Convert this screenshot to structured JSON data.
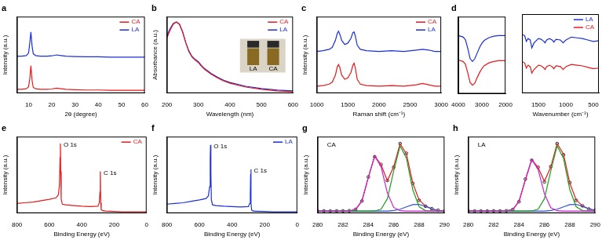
{
  "chart_data": [
    {
      "type": "line",
      "title": "a",
      "x_label": "2θ (degree)",
      "y_label": "Intensity (a.u.)",
      "x": [
        5,
        7,
        9,
        10,
        10.5,
        11,
        11.5,
        12,
        13,
        15,
        18,
        20,
        22,
        24,
        26,
        30,
        35,
        40,
        45,
        50,
        55,
        60
      ],
      "series": [
        {
          "name": "CA",
          "color": "#e41a1c",
          "line_style": "solid",
          "values": [
            0.6,
            0.6,
            0.7,
            1.0,
            2.2,
            4.3,
            2.0,
            0.9,
            0.7,
            0.6,
            0.6,
            0.65,
            0.8,
            0.7,
            0.6,
            0.55,
            0.5,
            0.5,
            0.45,
            0.45,
            0.45,
            0.45
          ]
        },
        {
          "name": "LA",
          "color": "#1a2fd6",
          "line_style": "solid",
          "values": [
            5.8,
            5.8,
            5.9,
            6.3,
            7.8,
            9.6,
            7.4,
            6.2,
            5.9,
            5.8,
            5.8,
            5.85,
            6.0,
            5.9,
            5.8,
            5.75,
            5.7,
            5.7,
            5.65,
            5.65,
            5.65,
            5.65
          ]
        }
      ],
      "xlim": [
        5,
        60
      ],
      "xticks": [
        10,
        20,
        30,
        40,
        50,
        60
      ],
      "ylim": [
        0,
        12
      ],
      "grid": false,
      "tick_labels": "x",
      "legend": "upper right"
    },
    {
      "type": "line",
      "title": "b",
      "x_label": "Wavelength (nm)",
      "y_label": "Absorbance (a.u.)",
      "x": [
        200,
        210,
        220,
        230,
        240,
        250,
        260,
        270,
        280,
        290,
        300,
        310,
        320,
        340,
        360,
        380,
        400,
        450,
        500,
        550,
        600
      ],
      "series": [
        {
          "name": "CA",
          "color": "#e41a1c",
          "line_style": "solid",
          "values": [
            0.72,
            0.82,
            0.9,
            0.93,
            0.9,
            0.8,
            0.66,
            0.54,
            0.47,
            0.43,
            0.4,
            0.35,
            0.31,
            0.25,
            0.2,
            0.16,
            0.13,
            0.08,
            0.05,
            0.03,
            0.02
          ]
        },
        {
          "name": "LA",
          "color": "#1a2fd6",
          "line_style": "solid",
          "values": [
            0.75,
            0.84,
            0.91,
            0.93,
            0.9,
            0.8,
            0.66,
            0.55,
            0.48,
            0.44,
            0.41,
            0.36,
            0.32,
            0.26,
            0.21,
            0.17,
            0.14,
            0.09,
            0.06,
            0.04,
            0.03
          ]
        }
      ],
      "xlim": [
        200,
        600
      ],
      "xticks": [
        200,
        300,
        400,
        500,
        600
      ],
      "ylim": [
        0,
        1
      ],
      "grid": false,
      "tick_labels": "x",
      "legend": "upper right",
      "annotations": [
        {
          "text": "LA"
        },
        {
          "text": "CA"
        }
      ]
    },
    {
      "type": "line",
      "title": "c",
      "x_label": "Raman shift (cm⁻¹)",
      "y_label": "Intensity (a.u.)",
      "x": [
        1000,
        1100,
        1200,
        1250,
        1300,
        1330,
        1350,
        1370,
        1400,
        1450,
        1500,
        1550,
        1580,
        1600,
        1620,
        1650,
        1700,
        1800,
        2000,
        2200,
        2400,
        2600,
        2700,
        2800,
        2900,
        3000
      ],
      "series": [
        {
          "name": "CA",
          "color": "#e41a1c",
          "line_style": "solid",
          "values": [
            1.0,
            1.1,
            1.3,
            1.6,
            2.6,
            3.8,
            4.1,
            3.7,
            2.6,
            2.0,
            2.2,
            3.0,
            4.0,
            4.3,
            3.6,
            2.0,
            1.3,
            1.1,
            1.0,
            1.1,
            1.0,
            1.2,
            1.4,
            1.2,
            1.0,
            1.0
          ]
        },
        {
          "name": "LA",
          "color": "#1a2fd6",
          "line_style": "solid",
          "values": [
            6.0,
            6.1,
            6.3,
            6.6,
            7.6,
            8.6,
            8.9,
            8.5,
            7.6,
            7.0,
            7.2,
            7.9,
            8.7,
            8.8,
            8.2,
            6.9,
            6.3,
            6.1,
            6.0,
            6.1,
            6.0,
            6.2,
            6.3,
            6.2,
            6.0,
            6.0
          ]
        }
      ],
      "xlim": [
        1000,
        3000
      ],
      "xticks": [
        1000,
        1500,
        2000,
        2500,
        3000
      ],
      "ylim": [
        0,
        11
      ],
      "grid": false,
      "tick_labels": "x",
      "legend": "upper right"
    },
    {
      "type": "line",
      "title": "d",
      "x": [
        4000,
        3800,
        3700,
        3600,
        3500,
        3400,
        3300,
        3200,
        3100,
        3000,
        2900,
        2700,
        2500,
        2300,
        2000
      ],
      "series": [
        {
          "color": "#1a2fd6",
          "line_style": "solid",
          "values": [
            8.3,
            8.1,
            7.7,
            6.5,
            5.0,
            4.6,
            5.0,
            5.8,
            6.6,
            7.2,
            7.6,
            8.0,
            8.2,
            8.3,
            8.3
          ]
        },
        {
          "color": "#e41a1c",
          "line_style": "solid",
          "values": [
            4.8,
            4.6,
            4.2,
            3.0,
            1.6,
            1.2,
            1.5,
            2.3,
            3.0,
            3.6,
            4.0,
            4.4,
            4.6,
            4.7,
            4.7
          ]
        }
      ],
      "xlim": [
        4000,
        2000
      ],
      "xticks": [
        4000,
        3000,
        2000
      ],
      "ylim": [
        0,
        11
      ],
      "grid": false,
      "tick_labels": "x"
    },
    {
      "type": "line",
      "x_label": "Wavenumber (cm⁻¹)",
      "x": [
        1800,
        1750,
        1720,
        1690,
        1650,
        1620,
        1580,
        1500,
        1450,
        1400,
        1380,
        1350,
        1300,
        1250,
        1220,
        1180,
        1100,
        1050,
        1000,
        900,
        800,
        700,
        600,
        500,
        400
      ],
      "series": [
        {
          "name": "LA",
          "color": "#1a2fd6",
          "line_style": "solid",
          "values": [
            8.2,
            8.0,
            7.2,
            7.6,
            7.4,
            6.3,
            7.0,
            7.6,
            7.5,
            7.2,
            7.0,
            7.4,
            7.6,
            7.4,
            7.1,
            7.5,
            7.4,
            7.0,
            7.4,
            7.8,
            7.7,
            7.6,
            7.4,
            7.2,
            7.3
          ]
        },
        {
          "name": "CA",
          "color": "#e41a1c",
          "line_style": "solid",
          "values": [
            4.4,
            4.2,
            3.5,
            3.9,
            3.7,
            2.8,
            3.3,
            3.9,
            3.8,
            3.5,
            3.3,
            3.7,
            3.9,
            3.7,
            3.4,
            3.8,
            3.7,
            3.3,
            3.7,
            4.0,
            3.9,
            3.8,
            3.6,
            3.4,
            3.5
          ]
        }
      ],
      "xlim": [
        1800,
        400
      ],
      "xticks": [
        1500,
        1000,
        500
      ],
      "ylim": [
        0,
        11
      ],
      "grid": false,
      "tick_labels": "x",
      "legend": "upper right"
    },
    {
      "type": "line",
      "title": "e",
      "x_label": "Binding Energy (eV)",
      "y_label": "Intensity (a.u.)",
      "x": [
        800,
        750,
        700,
        650,
        600,
        560,
        545,
        538,
        534,
        532,
        530,
        527,
        520,
        500,
        450,
        400,
        350,
        300,
        292,
        288,
        286,
        285,
        283,
        280,
        270,
        250,
        200,
        150,
        100,
        50,
        0
      ],
      "series": [
        {
          "name": "CA",
          "color": "#e41a1c",
          "line_style": "solid",
          "values": [
            1.4,
            1.5,
            1.6,
            1.8,
            2.0,
            2.2,
            2.6,
            4.0,
            8.0,
            10.0,
            6.0,
            2.0,
            1.3,
            1.2,
            1.1,
            1.0,
            0.95,
            1.0,
            1.5,
            3.0,
            5.5,
            6.0,
            1.5,
            0.5,
            0.35,
            0.3,
            0.25,
            0.2,
            0.2,
            0.2,
            0.2
          ]
        }
      ],
      "xlim": [
        800,
        0
      ],
      "xticks": [
        800,
        600,
        400,
        200,
        0
      ],
      "ylim": [
        0,
        11
      ],
      "grid": false,
      "tick_labels": "x",
      "legend": "upper right",
      "annotations": [
        {
          "text": "O 1s",
          "x": 532,
          "y": 10.0
        },
        {
          "text": "C 1s",
          "x": 285,
          "y": 6.0
        }
      ]
    },
    {
      "type": "line",
      "title": "f",
      "x_label": "Binding Energy (eV)",
      "y_label": "Intensity (a.u.)",
      "x": [
        800,
        750,
        700,
        650,
        600,
        560,
        545,
        538,
        534,
        532,
        530,
        527,
        520,
        500,
        450,
        400,
        350,
        300,
        292,
        288,
        286,
        285,
        283,
        280,
        270,
        250,
        200,
        150,
        100,
        50,
        0
      ],
      "series": [
        {
          "name": "LA",
          "color": "#1a2fd6",
          "line_style": "solid",
          "values": [
            1.3,
            1.4,
            1.5,
            1.7,
            1.9,
            2.1,
            2.5,
            3.8,
            7.8,
            9.8,
            5.8,
            1.9,
            1.2,
            1.1,
            1.0,
            0.95,
            0.9,
            0.95,
            1.4,
            2.8,
            5.6,
            6.3,
            1.4,
            0.45,
            0.3,
            0.28,
            0.24,
            0.2,
            0.2,
            0.2,
            0.2
          ]
        }
      ],
      "xlim": [
        800,
        0
      ],
      "xticks": [
        800,
        600,
        400,
        200,
        0
      ],
      "ylim": [
        0,
        11
      ],
      "grid": false,
      "tick_labels": "x",
      "legend": "upper right",
      "annotations": [
        {
          "text": "O 1s",
          "x": 532,
          "y": 9.8
        },
        {
          "text": "C 1s",
          "x": 285,
          "y": 6.3
        }
      ]
    },
    {
      "type": "line",
      "title": "g",
      "x_label": "Binding Energy (eV)",
      "y_label": "Intensity (a.u.)",
      "x": [
        280,
        280.5,
        281,
        281.5,
        282,
        282.5,
        283,
        283.5,
        284,
        284.5,
        285,
        285.5,
        286,
        286.5,
        287,
        287.5,
        288,
        288.5,
        289,
        289.5,
        290
      ],
      "series": [
        {
          "color": "#cc22cc",
          "line_style": "solid",
          "values": [
            0.3,
            0.3,
            0.3,
            0.3,
            0.3,
            0.32,
            0.53,
            1.79,
            5.15,
            8.2,
            6.7,
            2.9,
            0.83,
            0.35,
            0.3,
            0.3,
            0.3,
            0.3,
            0.3,
            0.3,
            0.3
          ]
        },
        {
          "color": "#1e9e1e",
          "line_style": "solid",
          "values": [
            0.3,
            0.3,
            0.3,
            0.3,
            0.3,
            0.3,
            0.3,
            0.3,
            0.3,
            0.32,
            0.57,
            2.07,
            6.07,
            9.67,
            7.9,
            3.39,
            0.93,
            0.36,
            0.3,
            0.3,
            0.3
          ]
        },
        {
          "color": "#3050d0",
          "line_style": "solid",
          "values": [
            0.3,
            0.3,
            0.3,
            0.3,
            0.3,
            0.3,
            0.3,
            0.3,
            0.3,
            0.3,
            0.3,
            0.3,
            0.38,
            0.57,
            0.91,
            1.23,
            1.27,
            0.98,
            0.62,
            0.4,
            0.32
          ]
        },
        {
          "color": "#e41a1c",
          "line_style": "solid",
          "values": [
            0.3,
            0.3,
            0.3,
            0.3,
            0.3,
            0.32,
            0.53,
            1.79,
            5.15,
            8.22,
            6.97,
            4.67,
            6.68,
            9.99,
            8.51,
            4.32,
            1.9,
            1.04,
            0.62,
            0.4,
            0.32
          ]
        },
        {
          "color": "#000000",
          "marker": "circle",
          "line_style": "none",
          "values": [
            0.3,
            0.32,
            0.3,
            0.31,
            0.33,
            0.35,
            0.55,
            1.75,
            5.2,
            8.1,
            7.0,
            4.7,
            6.6,
            10.0,
            8.6,
            4.3,
            1.85,
            1.0,
            0.65,
            0.42,
            0.3
          ]
        }
      ],
      "xlim": [
        280,
        290
      ],
      "xticks": [
        280,
        282,
        284,
        286,
        288,
        290
      ],
      "ylim": [
        0,
        11
      ],
      "grid": false,
      "tick_labels": "x",
      "annotations": [
        {
          "text": "CA",
          "x": 280.5,
          "y": 10
        }
      ]
    },
    {
      "type": "line",
      "title": "h",
      "x_label": "Binding Energy (eV)",
      "y_label": "Intensity (a.u.)",
      "x": [
        280,
        280.5,
        281,
        281.5,
        282,
        282.5,
        283,
        283.5,
        284,
        284.5,
        285,
        285.5,
        286,
        286.5,
        287,
        287.5,
        288,
        288.5,
        289,
        289.5,
        290
      ],
      "series": [
        {
          "color": "#cc22cc",
          "line_style": "solid",
          "values": [
            0.3,
            0.3,
            0.3,
            0.3,
            0.3,
            0.3,
            0.32,
            0.5,
            1.7,
            4.8,
            7.7,
            6.3,
            2.8,
            0.8,
            0.35,
            0.3,
            0.3,
            0.3,
            0.3,
            0.3,
            0.3
          ]
        },
        {
          "color": "#1e9e1e",
          "line_style": "solid",
          "values": [
            0.3,
            0.3,
            0.3,
            0.3,
            0.3,
            0.3,
            0.3,
            0.3,
            0.3,
            0.3,
            0.32,
            0.57,
            2.07,
            6.07,
            9.67,
            7.9,
            3.39,
            0.93,
            0.36,
            0.3,
            0.3
          ]
        },
        {
          "color": "#3050d0",
          "line_style": "solid",
          "values": [
            0.3,
            0.3,
            0.3,
            0.3,
            0.3,
            0.3,
            0.3,
            0.3,
            0.3,
            0.3,
            0.3,
            0.3,
            0.3,
            0.38,
            0.57,
            0.91,
            1.23,
            1.27,
            0.98,
            0.62,
            0.4
          ]
        },
        {
          "color": "#e41a1c",
          "line_style": "solid",
          "values": [
            0.3,
            0.3,
            0.3,
            0.3,
            0.3,
            0.3,
            0.32,
            0.5,
            1.7,
            4.8,
            7.72,
            6.57,
            4.57,
            6.65,
            9.99,
            8.51,
            4.32,
            1.9,
            1.04,
            0.62,
            0.4
          ]
        },
        {
          "color": "#000000",
          "marker": "circle",
          "line_style": "none",
          "values": [
            0.31,
            0.3,
            0.32,
            0.3,
            0.33,
            0.31,
            0.34,
            0.52,
            1.65,
            4.9,
            7.6,
            6.6,
            4.5,
            6.7,
            10.0,
            8.4,
            4.4,
            1.85,
            1.05,
            0.6,
            0.42
          ]
        }
      ],
      "xlim": [
        280,
        290
      ],
      "xticks": [
        280,
        282,
        284,
        286,
        288,
        290
      ],
      "ylim": [
        0,
        11
      ],
      "grid": false,
      "tick_labels": "x",
      "annotations": [
        {
          "text": "LA",
          "x": 280.5,
          "y": 10
        }
      ]
    }
  ]
}
